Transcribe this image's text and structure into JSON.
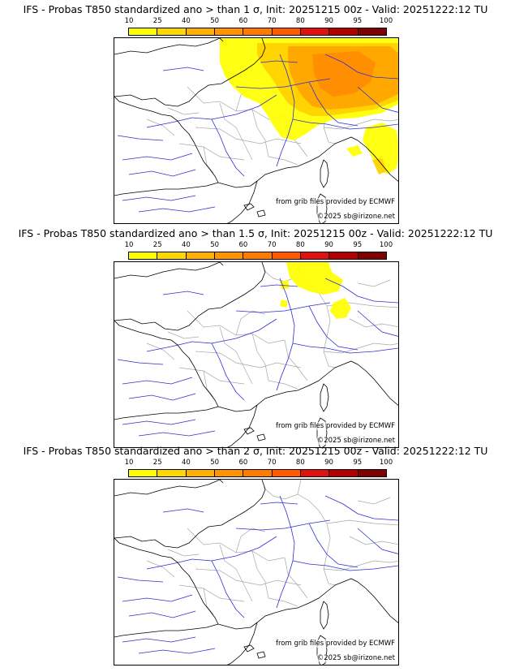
{
  "colorbar": {
    "ticks": [
      "10",
      "25",
      "40",
      "50",
      "60",
      "70",
      "80",
      "90",
      "95",
      "100"
    ],
    "colors": [
      "#ffff00",
      "#ffd700",
      "#ffb000",
      "#ff9400",
      "#ff7a00",
      "#ff5a00",
      "#e21010",
      "#b20000",
      "#7e0000"
    ]
  },
  "map_colors": {
    "coast": "#000000",
    "rivers": "#2d2dd6",
    "borders": "#a8a8a8",
    "prob_low": "#ffff00",
    "prob_mid": "#ffd000",
    "prob_high": "#ffa500",
    "prob_top": "#ff8c00"
  },
  "panels": [
    {
      "title": "IFS - Probas T850  standardized ano > than 1 σ, Init: 20251215 00z - Valid: 20251222:12 TU",
      "source_credit": "from grib files provided by ECMWF",
      "copyright": "©2025 sb@irizone.net",
      "coverage": "extensive"
    },
    {
      "title": "IFS - Probas T850  standardized ano > than 1.5 σ, Init: 20251215 00z - Valid: 20251222:12 TU",
      "source_credit": "from grib files provided by ECMWF",
      "copyright": "©2025 sb@irizone.net",
      "coverage": "moderate"
    },
    {
      "title": "IFS - Probas T850  standardized ano > than 2 σ, Init: 20251215 00z - Valid: 20251222:12 TU",
      "source_credit": "from grib files provided by ECMWF",
      "copyright": "©2025 sb@irizone.net",
      "coverage": "none"
    }
  ]
}
